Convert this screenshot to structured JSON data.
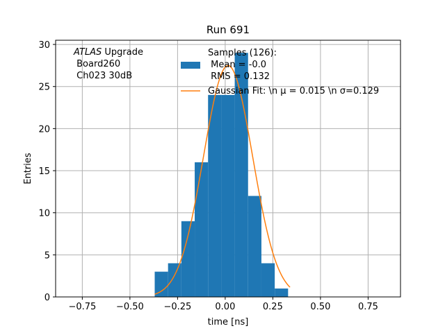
{
  "chart_data": {
    "type": "bar",
    "title": "Run 691",
    "xlabel": "time [ns]",
    "ylabel": "Entries",
    "xlim": [
      -0.89,
      0.92
    ],
    "ylim": [
      0,
      30.5
    ],
    "grid": true,
    "xticks": [
      -0.75,
      -0.5,
      -0.25,
      0.0,
      0.25,
      0.5,
      0.75
    ],
    "xtick_labels": [
      "−0.75",
      "−0.50",
      "−0.25",
      "0.00",
      "0.25",
      "0.50",
      "0.75"
    ],
    "yticks": [
      0,
      5,
      10,
      15,
      20,
      25,
      30
    ],
    "ytick_labels": [
      "0",
      "5",
      "10",
      "15",
      "20",
      "25",
      "30"
    ],
    "histogram": {
      "name": "Samples (126):",
      "color": "#1f77b4",
      "bin_edges": [
        -0.37,
        -0.3,
        -0.23,
        -0.16,
        -0.09,
        -0.02,
        0.05,
        0.12,
        0.19,
        0.26,
        0.33
      ],
      "counts": [
        3,
        4,
        9,
        16,
        24,
        24,
        29,
        12,
        4,
        1
      ]
    },
    "gaussian_fit": {
      "name": "Gaussian Fit: \\n μ = 0.015 \\n σ=0.129",
      "color": "#ff7f0e",
      "mu": 0.015,
      "sigma": 0.129,
      "amplitude": 27.5,
      "x_range": [
        -0.37,
        0.34
      ]
    },
    "legend": {
      "placement": "top-right",
      "entries": [
        {
          "lines": [
            "Samples (126):",
            " Mean = -0.0",
            " RMS = 0.132"
          ],
          "kind": "patch"
        },
        {
          "lines": [
            "Gaussian Fit: \\n μ = 0.015 \\n σ=0.129"
          ],
          "kind": "line"
        }
      ]
    },
    "annotation": {
      "lines": [
        "ATLAS Upgrade",
        " Board260",
        " Ch023 30dB"
      ]
    }
  }
}
